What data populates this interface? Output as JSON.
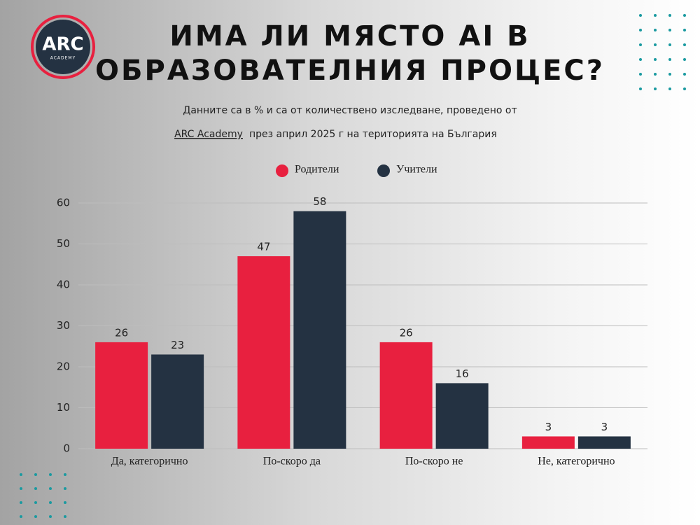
{
  "logo": {
    "name": "ARC",
    "tagline": "ACADEMY"
  },
  "chart_data": {
    "type": "bar",
    "title_lines": [
      "ИМА ЛИ МЯСТО AI В",
      "ОБРАЗОВАТЕЛНИЯ ПРОЦЕС?"
    ],
    "subtitle_lines": [
      "Данните са в % и са от количествено изследване, проведено от",
      "през април 2025 г на територията на България"
    ],
    "subtitle_link": "ARC Academy",
    "categories": [
      "Да, категорично",
      "По-скоро да",
      "По-скоро не",
      "Не, категорично"
    ],
    "series": [
      {
        "name": "Родители",
        "color": "#e8203f",
        "values": [
          26,
          47,
          26,
          3
        ]
      },
      {
        "name": "Учители",
        "color": "#243242",
        "values": [
          23,
          58,
          16,
          3
        ]
      }
    ],
    "ylim": [
      0,
      60
    ],
    "yticks": [
      0,
      10,
      20,
      30,
      40,
      50,
      60
    ],
    "grid": true,
    "legend": "top"
  }
}
